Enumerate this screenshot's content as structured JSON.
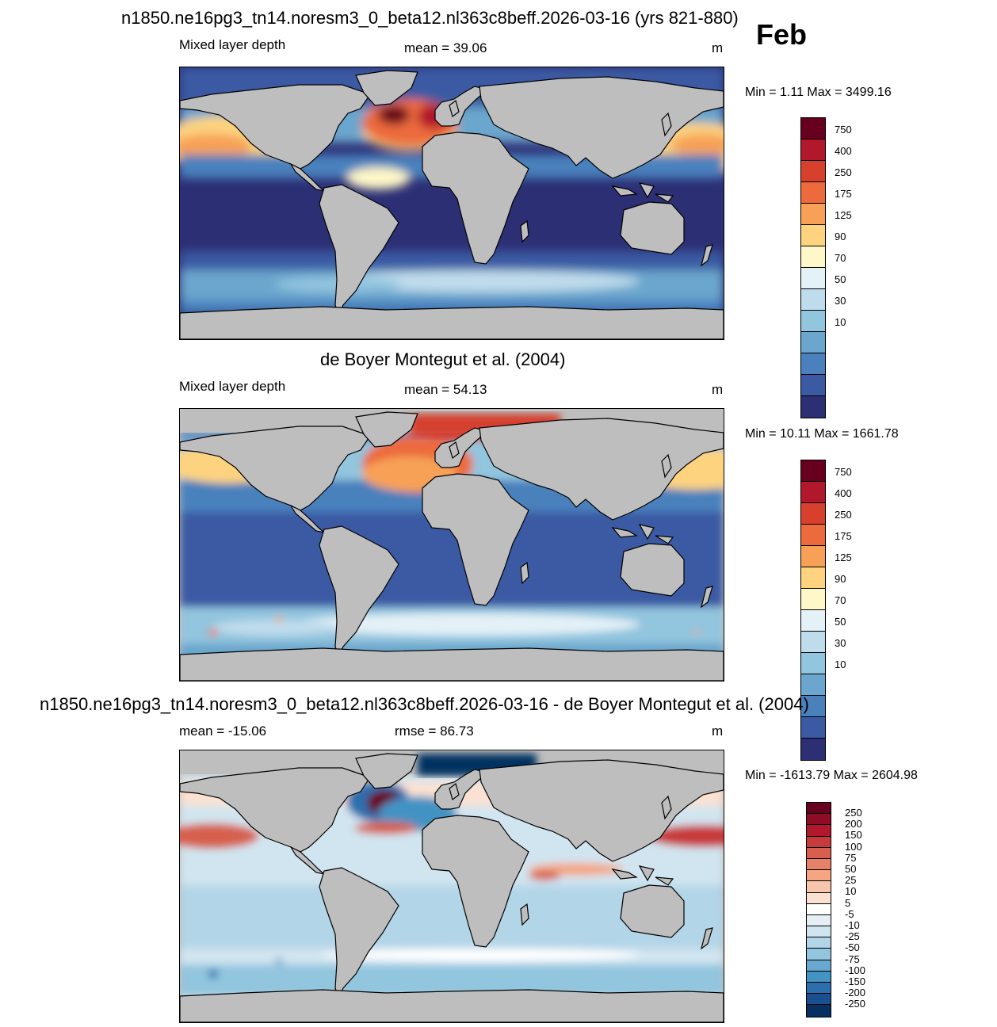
{
  "header": {
    "title": "n1850.ne16pg3_tn14.noresm3_0_beta12.nl363c8beff.2026-03-16 (yrs 821-880)",
    "month": "Feb"
  },
  "panels": [
    {
      "id": "model",
      "subtitle_left": "Mixed layer depth",
      "stat_center": "mean =  39.06",
      "units": "m",
      "minmax": "Min =    1.11 Max = 3499.16",
      "colorbar": {
        "labels": [
          "750",
          "400",
          "250",
          "175",
          "125",
          "90",
          "70",
          "50",
          "30",
          "10"
        ],
        "colors": [
          "#67001f",
          "#b2182b",
          "#d6402d",
          "#ec6a3c",
          "#f7a156",
          "#fdd37f",
          "#fef7c7",
          "#e4f1f7",
          "#bfdcec",
          "#92c5de",
          "#6aa6cd",
          "#4a81bd",
          "#3a5aa3",
          "#2c2f74"
        ]
      }
    },
    {
      "id": "obs",
      "heading": "de Boyer Montegut et al. (2004)",
      "subtitle_left": "Mixed layer depth",
      "stat_center": "mean =  54.13",
      "units": "m",
      "minmax": "Min =  10.11 Max = 1661.78",
      "colorbar": {
        "labels": [
          "750",
          "400",
          "250",
          "175",
          "125",
          "90",
          "70",
          "50",
          "30",
          "10"
        ],
        "colors": [
          "#67001f",
          "#b2182b",
          "#d6402d",
          "#ec6a3c",
          "#f7a156",
          "#fdd37f",
          "#fef7c7",
          "#e4f1f7",
          "#bfdcec",
          "#92c5de",
          "#6aa6cd",
          "#4a81bd",
          "#3a5aa3",
          "#2c2f74"
        ]
      }
    },
    {
      "id": "diff",
      "heading": "n1850.ne16pg3_tn14.noresm3_0_beta12.nl363c8beff.2026-03-16 - de Boyer Montegut et al. (2004)",
      "subtitle_left": "mean = -15.06",
      "stat_center": "rmse =  86.73",
      "units": "m",
      "minmax": "Min = -1613.79 Max = 2604.98",
      "colorbar": {
        "labels": [
          "250",
          "200",
          "150",
          "100",
          "75",
          "50",
          "25",
          "10",
          "5",
          "-5",
          "-10",
          "-25",
          "-50",
          "-75",
          "-100",
          "-150",
          "-200",
          "-250"
        ],
        "colors": [
          "#67001f",
          "#8e0c25",
          "#b2182b",
          "#c83a3a",
          "#d6604d",
          "#e58267",
          "#f4a582",
          "#f8c6ab",
          "#fbe1d2",
          "#ffffff",
          "#e6eff6",
          "#d1e5f0",
          "#b3d5e8",
          "#92c5de",
          "#6aa8d0",
          "#4393c3",
          "#2c6fae",
          "#1a4f8f",
          "#053061"
        ]
      }
    }
  ],
  "map_colors": {
    "land": "#bebebe"
  }
}
